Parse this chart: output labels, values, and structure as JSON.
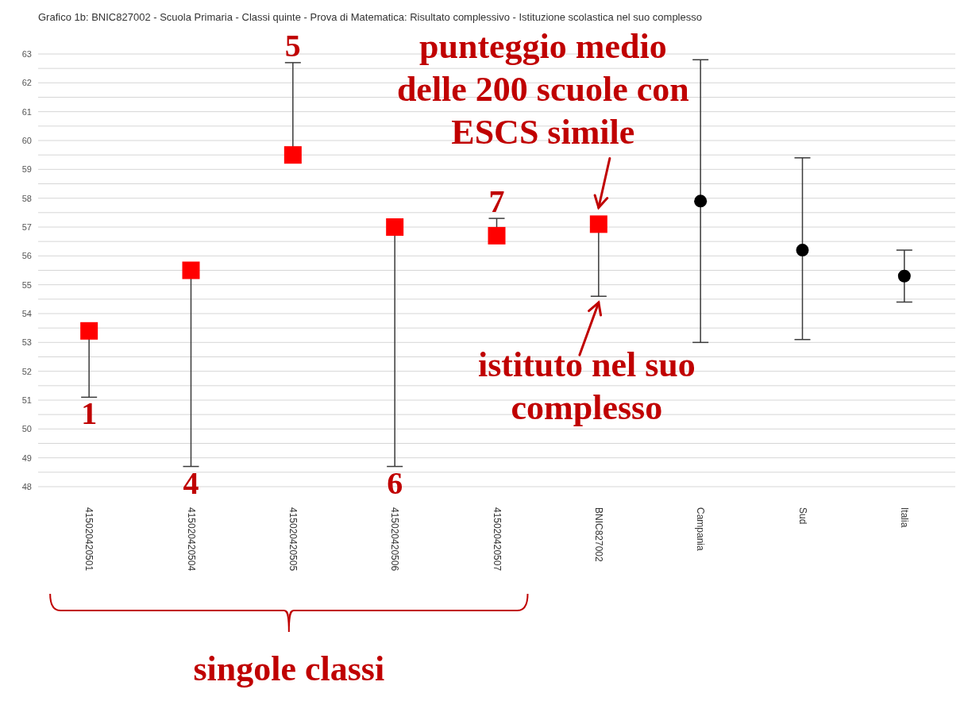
{
  "chart_data": {
    "type": "scatter",
    "title": "Grafico 1b: BNIC827002 - Scuola Primaria - Classi quinte - Prova di Matematica: Risultato complessivo - Istituzione scolastica nel suo complesso",
    "categories": [
      "415020420501",
      "415020420504",
      "415020420505",
      "415020420506",
      "415020420507",
      "BNIC827002",
      "Campania",
      "Sud",
      "Italia"
    ],
    "series": [
      {
        "color": "#ff0000",
        "marker": "square",
        "values": [
          53.4,
          55.5,
          59.5,
          57.0,
          56.7,
          57.1,
          null,
          null,
          null
        ],
        "errors": [
          [
            51.1,
            53.4
          ],
          [
            48.7,
            55.5
          ],
          [
            59.5,
            62.7
          ],
          [
            48.7,
            57.0
          ],
          [
            56.7,
            57.3
          ],
          [
            54.6,
            57.1
          ],
          null,
          null,
          null
        ]
      },
      {
        "color": "#000000",
        "marker": "circle",
        "values": [
          null,
          null,
          null,
          null,
          null,
          null,
          57.9,
          56.2,
          55.3
        ],
        "errors": [
          null,
          null,
          null,
          null,
          null,
          null,
          [
            53.0,
            62.8
          ],
          [
            53.1,
            59.4
          ],
          [
            54.4,
            56.2
          ]
        ]
      }
    ],
    "ylim": [
      48,
      63
    ],
    "yticks": [
      48,
      {
        "value": 48.5,
        "label": null
      },
      49,
      {
        "value": 49.5,
        "label": null
      },
      50,
      {
        "value": 50.5,
        "label": null
      },
      51,
      {
        "value": 51.5,
        "label": null
      },
      52,
      {
        "value": 52.5,
        "label": null
      },
      53,
      {
        "value": 53.5,
        "label": null
      },
      54,
      {
        "value": 54.5,
        "label": null
      },
      55,
      {
        "value": 55.5,
        "label": null
      },
      56,
      {
        "value": 56.5,
        "label": null
      },
      57,
      {
        "value": 57.5,
        "label": null
      },
      58,
      {
        "value": 58.5,
        "label": null
      },
      59,
      {
        "value": 59.5,
        "label": null
      },
      60,
      {
        "value": 60.5,
        "label": null
      },
      61,
      {
        "value": 61.5,
        "label": null
      },
      62,
      {
        "value": 62.5,
        "label": null
      },
      63
    ],
    "grid": "y",
    "annotations": [
      "1",
      "4",
      "5",
      "6",
      "7",
      {
        "text": "punteggio medio delle 200 scuole con ESCS simile",
        "x": "BNIC827002",
        "y": 57.4
      },
      {
        "text": "istituto nel suo complesso",
        "x": "BNIC827002",
        "y": 54.6
      },
      "singole classi"
    ]
  }
}
